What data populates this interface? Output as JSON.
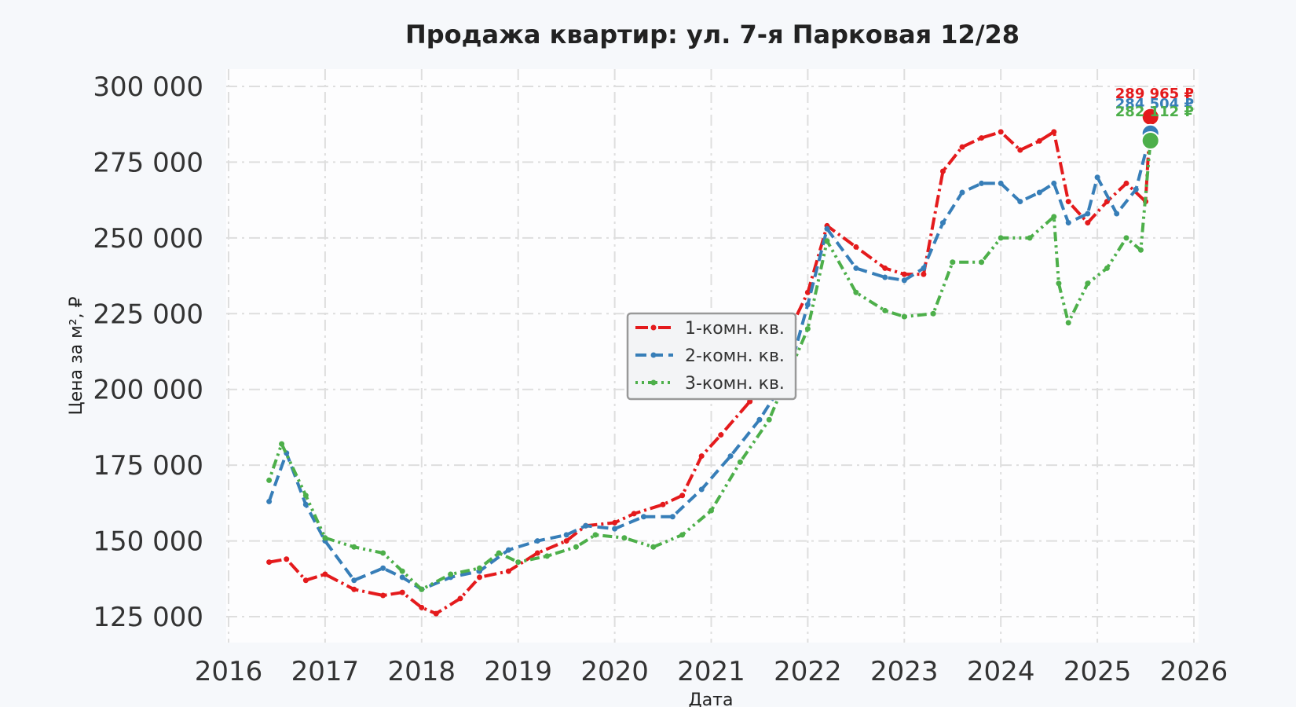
{
  "chart_data": {
    "type": "line",
    "title": "Продажа квартир: ул. 7-я Парковая 12/28",
    "xlabel": "Дата",
    "ylabel": "Цена за м², ₽",
    "xlim": [
      2016,
      2026
    ],
    "ylim": [
      118000,
      307000
    ],
    "x_ticks": [
      "2016",
      "2017",
      "2018",
      "2019",
      "2020",
      "2021",
      "2022",
      "2023",
      "2024",
      "2025",
      "2026"
    ],
    "y_ticks": [
      "125 000",
      "150 000",
      "175 000",
      "200 000",
      "225 000",
      "250 000",
      "275 000",
      "300 000"
    ],
    "y_tick_values": [
      125000,
      150000,
      175000,
      200000,
      225000,
      250000,
      275000,
      300000
    ],
    "grid": true,
    "legend_position": "center",
    "series": [
      {
        "name": "1-комн. кв.",
        "color": "#e41a1c",
        "x": [
          2016.42,
          2016.6,
          2016.8,
          2017.0,
          2017.3,
          2017.6,
          2017.8,
          2018.0,
          2018.15,
          2018.4,
          2018.6,
          2018.9,
          2019.2,
          2019.5,
          2019.7,
          2020.0,
          2020.2,
          2020.5,
          2020.7,
          2020.9,
          2021.1,
          2021.4,
          2021.7,
          2022.0,
          2022.2,
          2022.5,
          2022.8,
          2023.0,
          2023.2,
          2023.4,
          2023.6,
          2023.8,
          2024.0,
          2024.2,
          2024.4,
          2024.55,
          2024.7,
          2024.9,
          2025.1,
          2025.3,
          2025.5,
          2025.55
        ],
        "values": [
          143000,
          144000,
          137000,
          139000,
          134000,
          132000,
          133000,
          128000,
          126000,
          131000,
          138000,
          140000,
          146000,
          150000,
          155000,
          156000,
          159000,
          162000,
          165000,
          178000,
          185000,
          196000,
          212000,
          232000,
          254000,
          247000,
          240000,
          238000,
          238000,
          272000,
          280000,
          283000,
          285000,
          279000,
          282000,
          285000,
          262000,
          255000,
          262000,
          268000,
          262000,
          289965
        ]
      },
      {
        "name": "2-комн. кв.",
        "color": "#377eb8",
        "x": [
          2016.42,
          2016.6,
          2016.8,
          2017.0,
          2017.3,
          2017.6,
          2017.8,
          2018.0,
          2018.3,
          2018.6,
          2018.9,
          2019.2,
          2019.5,
          2019.7,
          2020.0,
          2020.3,
          2020.6,
          2020.9,
          2021.2,
          2021.5,
          2021.8,
          2022.0,
          2022.2,
          2022.5,
          2022.8,
          2023.0,
          2023.2,
          2023.4,
          2023.6,
          2023.8,
          2024.0,
          2024.2,
          2024.4,
          2024.55,
          2024.7,
          2024.9,
          2025.0,
          2025.2,
          2025.4,
          2025.55
        ],
        "values": [
          163000,
          179000,
          162000,
          150000,
          137000,
          141000,
          138000,
          134000,
          138000,
          140000,
          147000,
          150000,
          152000,
          155000,
          154000,
          158000,
          158000,
          167000,
          178000,
          190000,
          205000,
          228000,
          253000,
          240000,
          237000,
          236000,
          240000,
          255000,
          265000,
          268000,
          268000,
          262000,
          265000,
          268000,
          255000,
          258000,
          270000,
          258000,
          266000,
          284504
        ]
      },
      {
        "name": "3-комн. кв.",
        "color": "#4daf4a",
        "x": [
          2016.42,
          2016.55,
          2016.8,
          2017.0,
          2017.3,
          2017.6,
          2017.8,
          2018.0,
          2018.3,
          2018.6,
          2018.8,
          2019.0,
          2019.3,
          2019.6,
          2019.8,
          2020.1,
          2020.4,
          2020.7,
          2021.0,
          2021.3,
          2021.6,
          2021.8,
          2022.0,
          2022.2,
          2022.5,
          2022.8,
          2023.0,
          2023.3,
          2023.5,
          2023.8,
          2024.0,
          2024.3,
          2024.55,
          2024.6,
          2024.7,
          2024.9,
          2025.1,
          2025.3,
          2025.45,
          2025.55
        ],
        "values": [
          170000,
          182000,
          165000,
          151000,
          148000,
          146000,
          140000,
          134000,
          139000,
          141000,
          146000,
          143000,
          145000,
          148000,
          152000,
          151000,
          148000,
          152000,
          160000,
          176000,
          190000,
          205000,
          220000,
          249000,
          232000,
          226000,
          224000,
          225000,
          242000,
          242000,
          250000,
          250000,
          257000,
          235000,
          222000,
          235000,
          240000,
          250000,
          246000,
          282112
        ]
      }
    ],
    "end_labels": [
      "289 965 ₽",
      "284 504 ₽",
      "282 112 ₽"
    ]
  }
}
